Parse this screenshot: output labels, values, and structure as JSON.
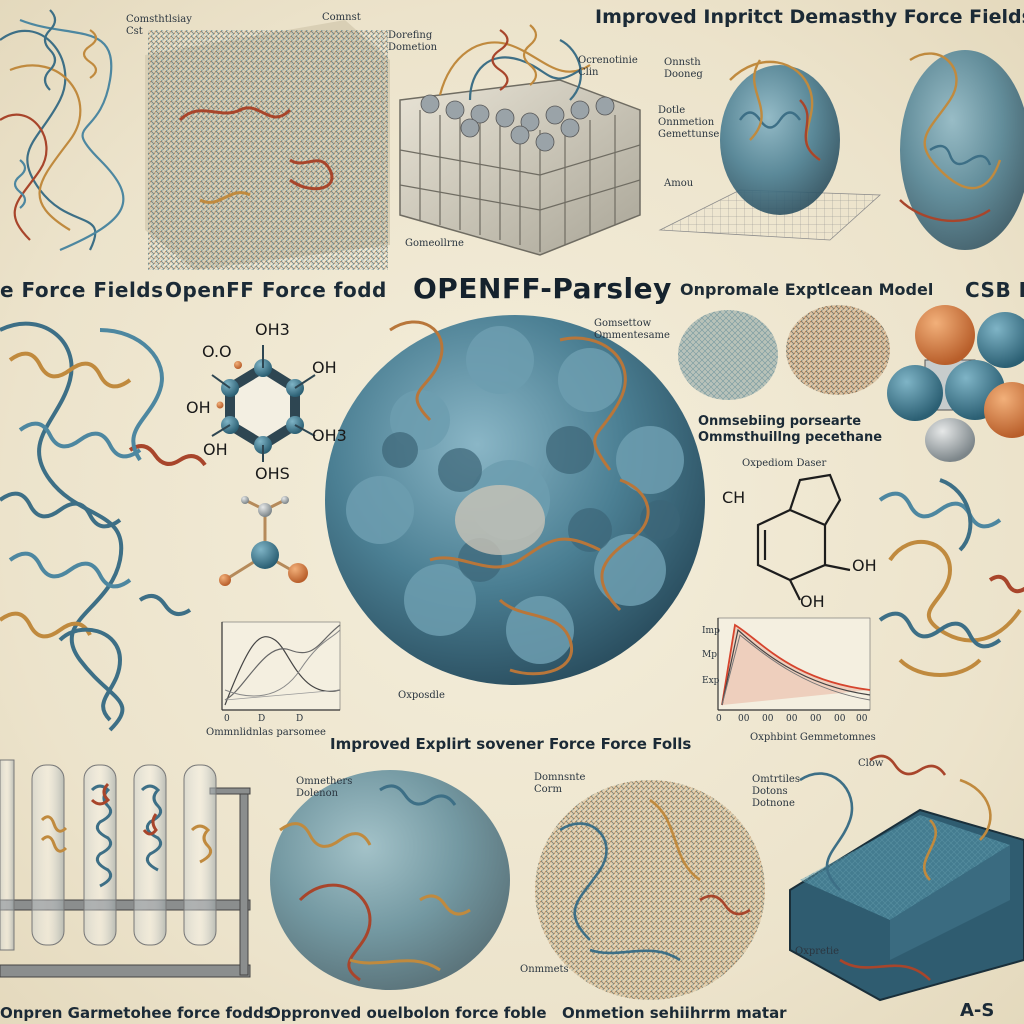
{
  "headline": "Improved Inpritct Demasthy Force Fields n",
  "labels": {
    "left_row1": "e Force Fields",
    "openff_force_field": "OpenFF Force fodd",
    "openff_parsley": "OPENFF-Parsley",
    "optimized_model": "Onpromale Exptlcean Model",
    "cutoff_right": "CSB E",
    "improved_explicit": "Improved Explirt sovener Force Force Folls",
    "bottom_1": "Onpren Garmetohee force fodds",
    "bottom_2": "Oppronved ouelbolon force foble",
    "bottom_3": "Onmetion sehiihrrm matar",
    "bottom_4": "A-S"
  },
  "annotations": {
    "a1": "Comsthtlsiay",
    "a1b": "Cst",
    "a2": "Comnst",
    "a3": "Dorefing",
    "a3b": "Dometion",
    "a4": "Ocrenotinie",
    "a4b": "Clin",
    "a5": "Dotle",
    "a5b": "Onnmetion",
    "a5c": "Gemettunse",
    "a6": "Amou",
    "a7": "Onnsth",
    "a7b": "Dooneg",
    "a8": "Gomeollrne",
    "a9": "Gomsettow",
    "a9b": "Ommentesame",
    "a10": "Onmsebiing porsearte",
    "a10b": "Ommsthuillng pecethane",
    "a11": "Oxpediom Daser",
    "a12": "Oxposdle",
    "a13": "Ommnlidnlas parsomee",
    "a14": "Oxphbint Gemmetomnes",
    "a15": "Omnethers",
    "a15b": "Dolenon",
    "a16": "Domnsnte",
    "a16b": "Corm",
    "a17": "Omtrtiles",
    "a17b": "Dotons",
    "a17c": "Dotnone",
    "a18": "Clow",
    "a19": "Onmmets",
    "a20": "Oxpretie"
  },
  "molecule_labels": {
    "m1": "OH3",
    "m2": "O.O",
    "m3": "OH",
    "m4": "OH",
    "m5": "OH3",
    "m6": "OH",
    "m7": "OHS",
    "m8": "CH",
    "m9": "OH",
    "m10": "OH"
  },
  "chart_axes": {
    "left_x": [
      "0",
      "D",
      "D"
    ],
    "right_y": [
      "Imp",
      "Mp",
      "Exp"
    ],
    "right_x": [
      "0",
      "00",
      "00",
      "00",
      "00",
      "00",
      "00"
    ]
  },
  "colors": {
    "background": "#efe8d3",
    "protein_teal": "#3d6f86",
    "protein_blue": "#4d87a0",
    "ribbon_gold": "#c08a3e",
    "ribbon_rust": "#a8452b",
    "ink": "#1b2a36",
    "atom_orange": "#d9834a",
    "atom_teal": "#3f7e96",
    "atom_grey": "#9aa3a8"
  }
}
